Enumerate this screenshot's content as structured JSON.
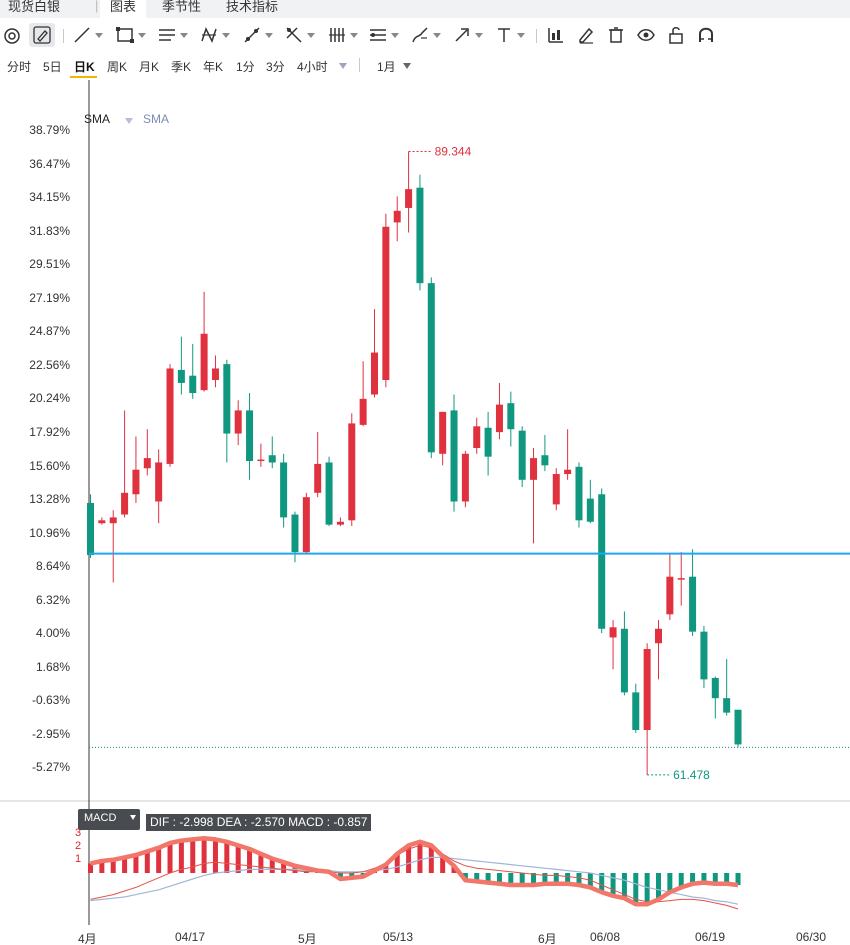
{
  "topbar": {
    "title": "现货白银",
    "tabs": [
      "图表",
      "季节性",
      "技术指标"
    ],
    "active_tab": 0
  },
  "toolbar": {
    "tools": [
      "gauge-icon",
      "pencil-icon",
      "line-icon",
      "rectangle-icon",
      "horizontal-lines-icon",
      "zigzag-pattern-icon",
      "parallel-line-icon",
      "fibonacci-icon",
      "vertical-bars-icon",
      "range-icon",
      "brush-icon",
      "arrow-icon",
      "text-icon",
      "bar-chart-icon",
      "edit-icon",
      "trash-icon",
      "eye-icon",
      "unlock-icon",
      "magnet-icon"
    ]
  },
  "periods": {
    "items": [
      "分时",
      "5日",
      "日K",
      "周K",
      "月K",
      "季K",
      "年K",
      "1分",
      "3分",
      "4小时"
    ],
    "active": "日K",
    "range": "1月"
  },
  "chart": {
    "indicators": [
      "SMA",
      "SMA"
    ],
    "y_ticks": [
      "38.79%",
      "36.47%",
      "34.15%",
      "31.83%",
      "29.51%",
      "27.19%",
      "24.87%",
      "22.56%",
      "20.24%",
      "17.92%",
      "15.60%",
      "13.28%",
      "10.96%",
      "8.64%",
      "6.32%",
      "4.00%",
      "1.68%",
      "-0.63%",
      "-2.95%",
      "-5.27%"
    ],
    "high_label": "89.344",
    "low_label": "61.478",
    "colors": {
      "up": "#e0313f",
      "down": "#10977f",
      "hline": "#1ea7f0",
      "dotted": "#1a8a6e"
    }
  },
  "chart_data": {
    "type": "candlestick",
    "x_labels": [
      "4月",
      "04/17",
      "5月",
      "05/13",
      "6月",
      "06/08",
      "06/19",
      "06/30"
    ],
    "y_axis": "percent change",
    "ylim": [
      "-5.27%",
      "38.79%"
    ],
    "marked_high": 89.344,
    "marked_low": 61.478,
    "candles": [
      {
        "o": 13.0,
        "c": 9.4,
        "h": 13.6,
        "l": 9.2
      },
      {
        "o": 11.6,
        "c": 11.8,
        "h": 12.0,
        "l": 11.5
      },
      {
        "o": 11.6,
        "c": 12.0,
        "h": 12.5,
        "l": 7.5
      },
      {
        "o": 12.2,
        "c": 13.7,
        "h": 19.4,
        "l": 12.0
      },
      {
        "o": 13.6,
        "c": 15.3,
        "h": 17.6,
        "l": 13.0
      },
      {
        "o": 15.4,
        "c": 16.1,
        "h": 18.1,
        "l": 14.9
      },
      {
        "o": 13.1,
        "c": 15.8,
        "h": 16.7,
        "l": 11.6
      },
      {
        "o": 15.7,
        "c": 22.3,
        "h": 22.6,
        "l": 15.5
      },
      {
        "o": 22.2,
        "c": 21.3,
        "h": 24.5,
        "l": 20.5
      },
      {
        "o": 21.8,
        "c": 20.6,
        "h": 24.0,
        "l": 20.2
      },
      {
        "o": 20.8,
        "c": 24.7,
        "h": 27.6,
        "l": 20.7
      },
      {
        "o": 21.5,
        "c": 22.3,
        "h": 23.2,
        "l": 21.0
      },
      {
        "o": 22.6,
        "c": 17.8,
        "h": 22.9,
        "l": 15.8
      },
      {
        "o": 17.8,
        "c": 19.4,
        "h": 20.1,
        "l": 17.0
      },
      {
        "o": 19.4,
        "c": 15.9,
        "h": 20.6,
        "l": 14.6
      },
      {
        "o": 15.9,
        "c": 16.0,
        "h": 17.1,
        "l": 15.5
      },
      {
        "o": 16.3,
        "c": 15.8,
        "h": 17.6,
        "l": 15.4
      },
      {
        "o": 15.8,
        "c": 12.0,
        "h": 16.4,
        "l": 11.3
      },
      {
        "o": 12.2,
        "c": 9.6,
        "h": 12.4,
        "l": 8.9
      },
      {
        "o": 9.6,
        "c": 13.4,
        "h": 13.7,
        "l": 9.5
      },
      {
        "o": 13.7,
        "c": 15.7,
        "h": 17.9,
        "l": 13.4
      },
      {
        "o": 15.8,
        "c": 11.5,
        "h": 16.2,
        "l": 11.4
      },
      {
        "o": 11.5,
        "c": 11.7,
        "h": 12.0,
        "l": 11.4
      },
      {
        "o": 11.8,
        "c": 18.5,
        "h": 19.2,
        "l": 11.4
      },
      {
        "o": 18.4,
        "c": 20.2,
        "h": 22.8,
        "l": 18.3
      },
      {
        "o": 20.5,
        "c": 23.4,
        "h": 26.4,
        "l": 20.3
      },
      {
        "o": 21.5,
        "c": 32.1,
        "h": 33.0,
        "l": 21.0
      },
      {
        "o": 32.4,
        "c": 33.2,
        "h": 34.2,
        "l": 31.1
      },
      {
        "o": 33.4,
        "c": 34.7,
        "h": 37.3,
        "l": 31.7
      },
      {
        "o": 34.8,
        "c": 28.2,
        "h": 35.7,
        "l": 27.7
      },
      {
        "o": 28.2,
        "c": 16.5,
        "h": 28.6,
        "l": 16.1
      },
      {
        "o": 16.4,
        "c": 19.3,
        "h": 19.3,
        "l": 15.6
      },
      {
        "o": 19.4,
        "c": 13.1,
        "h": 20.5,
        "l": 12.4
      },
      {
        "o": 13.1,
        "c": 16.4,
        "h": 16.6,
        "l": 12.7
      },
      {
        "o": 16.8,
        "c": 18.3,
        "h": 18.9,
        "l": 16.4
      },
      {
        "o": 18.2,
        "c": 16.2,
        "h": 19.3,
        "l": 14.9
      },
      {
        "o": 17.9,
        "c": 19.8,
        "h": 21.3,
        "l": 17.4
      },
      {
        "o": 19.9,
        "c": 18.1,
        "h": 20.7,
        "l": 16.9
      },
      {
        "o": 18.0,
        "c": 14.6,
        "h": 18.3,
        "l": 14.1
      },
      {
        "o": 14.6,
        "c": 16.1,
        "h": 16.8,
        "l": 10.2
      },
      {
        "o": 16.3,
        "c": 15.6,
        "h": 17.7,
        "l": 15.2
      },
      {
        "o": 12.9,
        "c": 15.0,
        "h": 15.4,
        "l": 12.5
      },
      {
        "o": 15.0,
        "c": 15.3,
        "h": 18.1,
        "l": 14.6
      },
      {
        "o": 15.5,
        "c": 11.8,
        "h": 15.8,
        "l": 11.3
      },
      {
        "o": 13.3,
        "c": 11.7,
        "h": 14.6,
        "l": 11.6
      },
      {
        "o": 13.6,
        "c": 4.3,
        "h": 14.0,
        "l": 4.0
      },
      {
        "o": 3.7,
        "c": 4.4,
        "h": 4.9,
        "l": 1.5
      },
      {
        "o": 4.3,
        "c": -0.1,
        "h": 5.5,
        "l": -0.3
      },
      {
        "o": -0.1,
        "c": -2.7,
        "h": 0.5,
        "l": -2.9
      },
      {
        "o": -2.7,
        "c": 2.9,
        "h": 3.3,
        "l": -5.8
      },
      {
        "o": 3.3,
        "c": 4.3,
        "h": 4.9,
        "l": 0.8
      },
      {
        "o": 5.3,
        "c": 7.9,
        "h": 9.5,
        "l": 4.9
      },
      {
        "o": 7.8,
        "c": 7.8,
        "h": 9.6,
        "l": 5.9
      },
      {
        "o": 7.9,
        "c": 4.1,
        "h": 9.8,
        "l": 3.8
      },
      {
        "o": 4.1,
        "c": 0.8,
        "h": 4.5,
        "l": 0.2
      },
      {
        "o": 0.9,
        "c": -0.5,
        "h": 1.0,
        "l": -1.9
      },
      {
        "o": -0.5,
        "c": -1.5,
        "h": 2.2,
        "l": -1.7
      },
      {
        "o": -1.3,
        "c": -3.7,
        "h": -1.3,
        "l": -3.9
      }
    ]
  },
  "macd": {
    "button_label": "MACD",
    "info": "DIF : -2.998   DEA : -2.570   MACD : -0.857",
    "ticks": [
      "3",
      "2",
      "1"
    ],
    "colors": {
      "pos": "#e0313f",
      "neg": "#10977f",
      "dif": "#e4534a",
      "dea": "#9fb7d8",
      "thick": "#f2776a"
    }
  },
  "xaxis": {
    "labels": [
      "4月",
      "04/17",
      "5月",
      "05/13",
      "6月",
      "06/08",
      "06/19",
      "06/30"
    ]
  }
}
